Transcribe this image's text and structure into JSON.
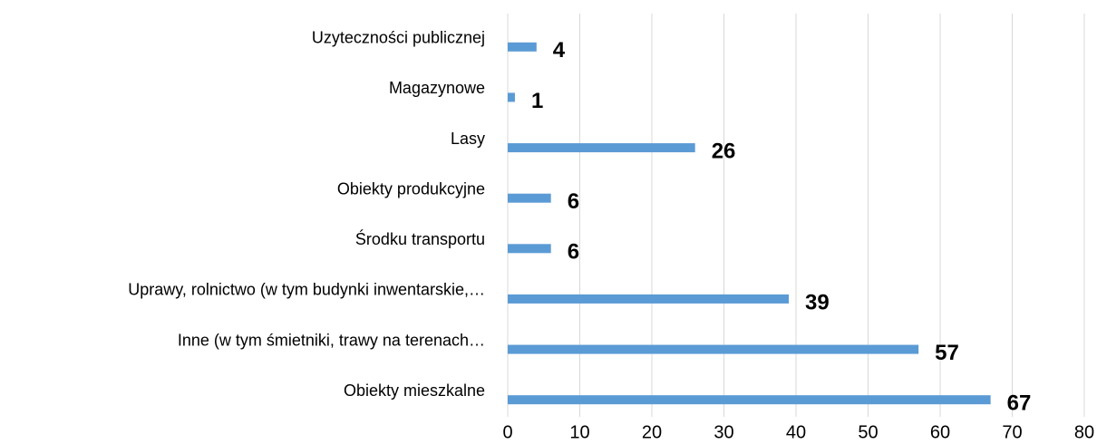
{
  "chart_data": {
    "type": "barh",
    "categories": [
      "Uzyteczności publicznej",
      "Magazynowe",
      "Lasy",
      "Obiekty produkcyjne",
      "Środku transportu",
      "Uprawy, rolnictwo (w tym budynki inwentarskie,…",
      "Inne (w tym śmietniki, trawy na terenach…",
      "Obiekty mieszkalne"
    ],
    "values": [
      4,
      1,
      26,
      6,
      6,
      39,
      57,
      67
    ],
    "color": "#5b9bd5",
    "xlim": [
      0,
      80
    ],
    "xticks": [
      0,
      10,
      20,
      30,
      40,
      50,
      60,
      70,
      80
    ],
    "grid": true
  }
}
